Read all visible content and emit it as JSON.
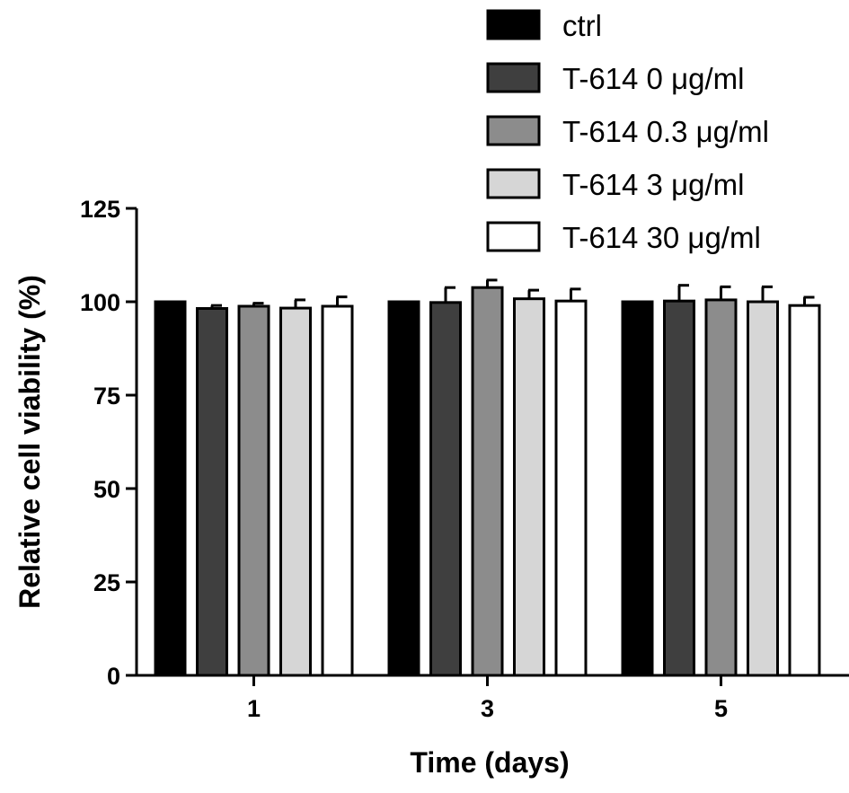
{
  "chart_data": {
    "type": "bar",
    "title": "",
    "xlabel": "Time (days)",
    "ylabel": "Relative cell viability (%)",
    "categories": [
      "1",
      "3",
      "5"
    ],
    "ylim": [
      0,
      125
    ],
    "yticks": [
      "0",
      "25",
      "50",
      "75",
      "100",
      "125"
    ],
    "grid": false,
    "legend_position": "top-right",
    "series": [
      {
        "name": "ctrl",
        "color": "#000000",
        "values": [
          100,
          100,
          100
        ],
        "errors": [
          0,
          0,
          0
        ]
      },
      {
        "name": "T-614 0 μg/ml",
        "color": "#3f3f3f",
        "values": [
          98.2,
          99.8,
          100.2
        ],
        "errors": [
          0.8,
          4.0,
          4.2
        ]
      },
      {
        "name": "T-614 0.3 μg/ml",
        "color": "#8c8c8c",
        "values": [
          98.8,
          103.8,
          100.5
        ],
        "errors": [
          0.8,
          2.0,
          3.5
        ]
      },
      {
        "name": "T-614 3 μg/ml",
        "color": "#d6d6d6",
        "values": [
          98.3,
          100.8,
          100.0
        ],
        "errors": [
          2.2,
          2.3,
          4.0
        ]
      },
      {
        "name": "T-614 30 μg/ml",
        "color": "#ffffff",
        "values": [
          98.8,
          100.2,
          99.0
        ],
        "errors": [
          2.5,
          3.2,
          2.2
        ]
      }
    ]
  }
}
